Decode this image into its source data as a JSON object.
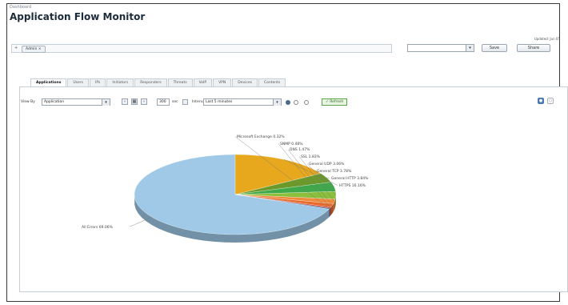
{
  "breadcrumb": "Dashboard",
  "page_title": "Application Flow Monitor",
  "updated_text": "Updated: Jun 05",
  "filter": {
    "add_symbol": "+",
    "chip_label": "Admin",
    "chip_close": "×"
  },
  "right_controls": {
    "select_value": "",
    "caret": "▾",
    "save_label": "Save",
    "share_label": "Share"
  },
  "tabs": [
    {
      "label": "Applications",
      "active": true
    },
    {
      "label": "Users"
    },
    {
      "label": "IPs"
    },
    {
      "label": "Initiators"
    },
    {
      "label": "Responders"
    },
    {
      "label": "Threats"
    },
    {
      "label": "VoIP"
    },
    {
      "label": "VPN"
    },
    {
      "label": "Devices"
    },
    {
      "label": "Contents"
    }
  ],
  "toolbar": {
    "view_by_label": "View By",
    "view_by_value": "Application",
    "caret": "▾",
    "nav_prev": "‹",
    "nav_grid": "▦",
    "nav_next": "›",
    "count_value": "300",
    "count_unit": "sec",
    "interval_label": "Interval",
    "interval_value": "Last 5 minutes",
    "refresh_label": "Refresh"
  },
  "view_icons": {
    "pie": "●",
    "table": "○"
  },
  "chart_data": {
    "type": "pie",
    "slices": [
      {
        "label": "All Errors 69.06%",
        "value": 69.06,
        "color": "#9fc9e6"
      },
      {
        "label": "HTTPS 16.16%",
        "value": 16.16,
        "color": "#e8a81e"
      },
      {
        "label": "General HTTP 3.84%",
        "value": 3.84,
        "color": "#6b9a2a"
      },
      {
        "label": "General TCP 3.78%",
        "value": 3.78,
        "color": "#3fa84a"
      },
      {
        "label": "General UDP 3.06%",
        "value": 3.06,
        "color": "#8bbf3c"
      },
      {
        "label": "SSL 1.83%",
        "value": 1.83,
        "color": "#f08a3a"
      },
      {
        "label": "DNS 1.47%",
        "value": 1.47,
        "color": "#e86a2c"
      },
      {
        "label": "SNMP 0.48%",
        "value": 0.48,
        "color": "#c0392b"
      },
      {
        "label": "Microsoft Exchange 0.32%",
        "value": 0.32,
        "color": "#2f5f9e"
      }
    ]
  }
}
